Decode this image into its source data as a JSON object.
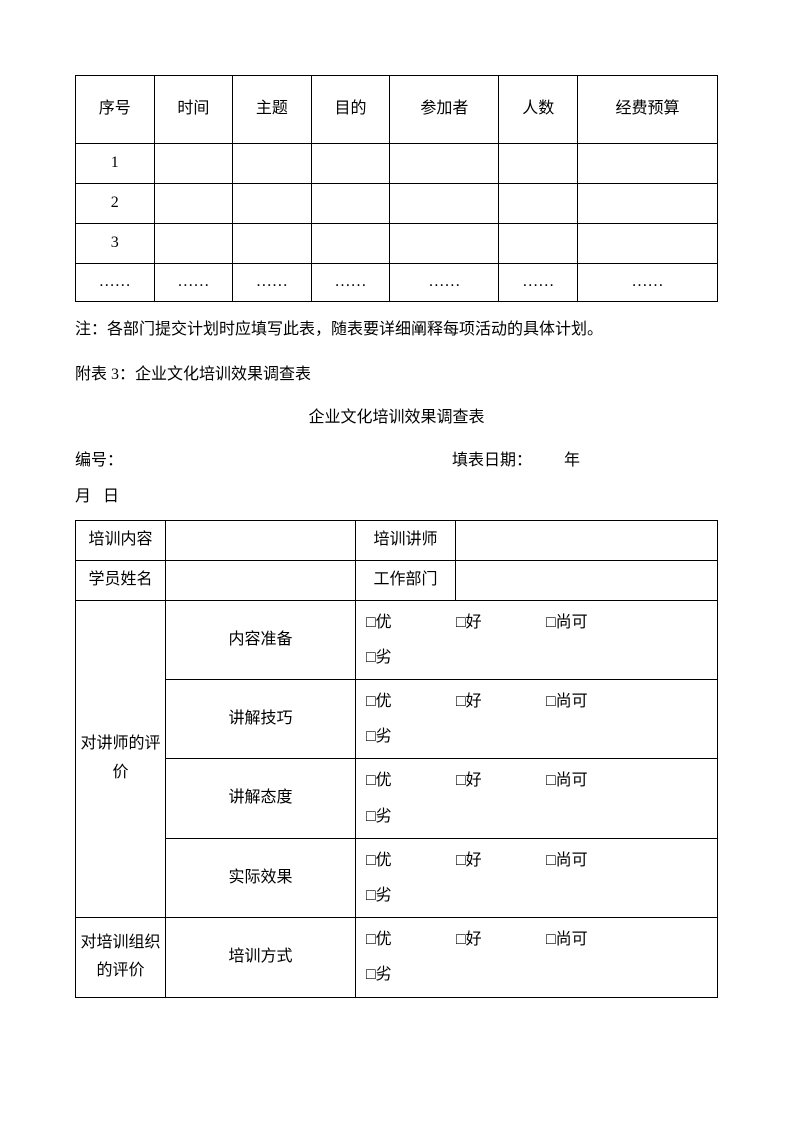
{
  "table1": {
    "headers": [
      "序号",
      "时间",
      "主题",
      "目的",
      "参加者",
      "人数",
      "经费预算"
    ],
    "rows": [
      [
        "1",
        "",
        "",
        "",
        "",
        "",
        ""
      ],
      [
        "2",
        "",
        "",
        "",
        "",
        "",
        ""
      ],
      [
        "3",
        "",
        "",
        "",
        "",
        "",
        ""
      ],
      [
        "……",
        "……",
        "……",
        "……",
        "……",
        "……",
        "……"
      ]
    ]
  },
  "note": "注：各部门提交计划时应填写此表，随表要详细阐释每项活动的具体计划。",
  "appendix_label": "附表 3：企业文化培训效果调查表",
  "title2": "企业文化培训效果调查表",
  "meta": {
    "serial_label": "编号：",
    "date_label": "填表日期：",
    "year_suffix": "年",
    "month_suffix": "月",
    "day_suffix": "日"
  },
  "table2": {
    "row1": {
      "label1": "培训内容",
      "label2": "培训讲师"
    },
    "row2": {
      "label1": "学员姓名",
      "label2": "工作部门"
    },
    "instructor_eval_label": "对讲师的评价",
    "instructor_items": [
      "内容准备",
      "讲解技巧",
      "讲解态度",
      "实际效果"
    ],
    "org_eval_label": "对培训组织的评价",
    "org_items": [
      "培训方式"
    ],
    "options": [
      "□优",
      "□好",
      "□尚可",
      "□劣"
    ]
  }
}
